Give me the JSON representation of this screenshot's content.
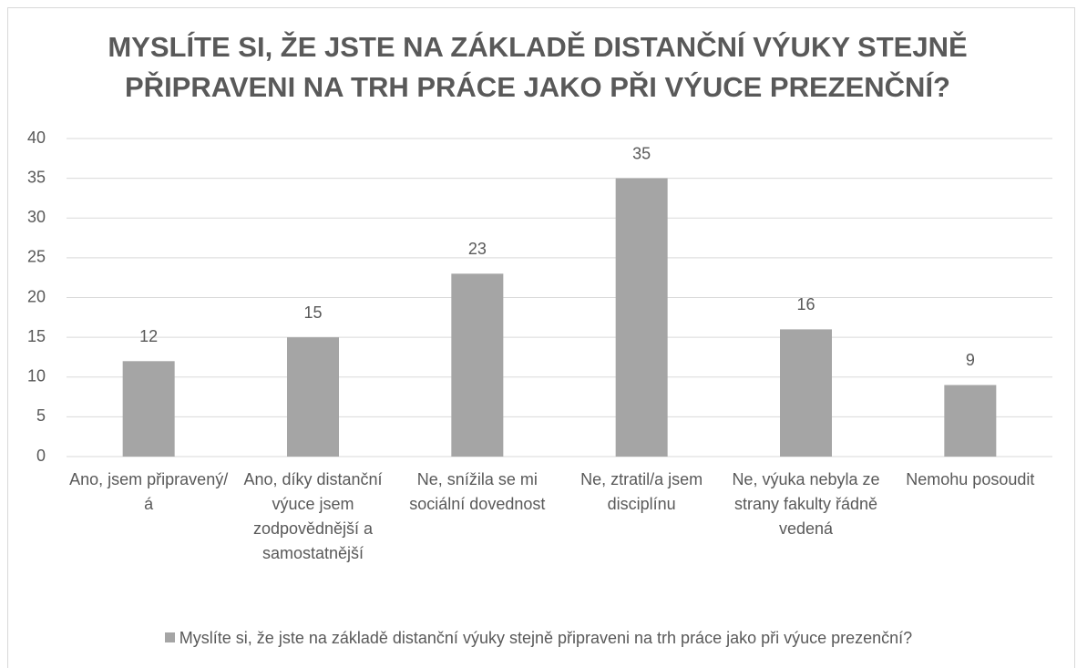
{
  "chart_data": {
    "type": "bar",
    "title": "MYSLÍTE SI, ŽE JSTE NA ZÁKLADĚ DISTANČNÍ VÝUKY STEJNĚ PŘIPRAVENI NA TRH PRÁCE JAKO PŘI VÝUCE PREZENČNÍ?",
    "categories": [
      "Ano, jsem připravený/á",
      "Ano, díky distanční výuce jsem zodpovědnější a samostatnější",
      "Ne, snížila se mi sociální dovednost",
      "Ne, ztratil/a jsem disciplínu",
      "Ne, výuka nebyla ze strany fakulty řádně vedená",
      "Nemohu posoudit"
    ],
    "series": [
      {
        "name": "Myslíte si, že jste na základě distanční výuky stejně připraveni na trh práce jako při výuce prezenční?",
        "color": "#a5a5a5",
        "values": [
          12,
          15,
          23,
          35,
          16,
          9
        ]
      }
    ],
    "ylim": [
      0,
      40
    ],
    "yticks": [
      0,
      5,
      10,
      15,
      20,
      25,
      30,
      35,
      40
    ],
    "grid": true,
    "legend": "bottom"
  }
}
